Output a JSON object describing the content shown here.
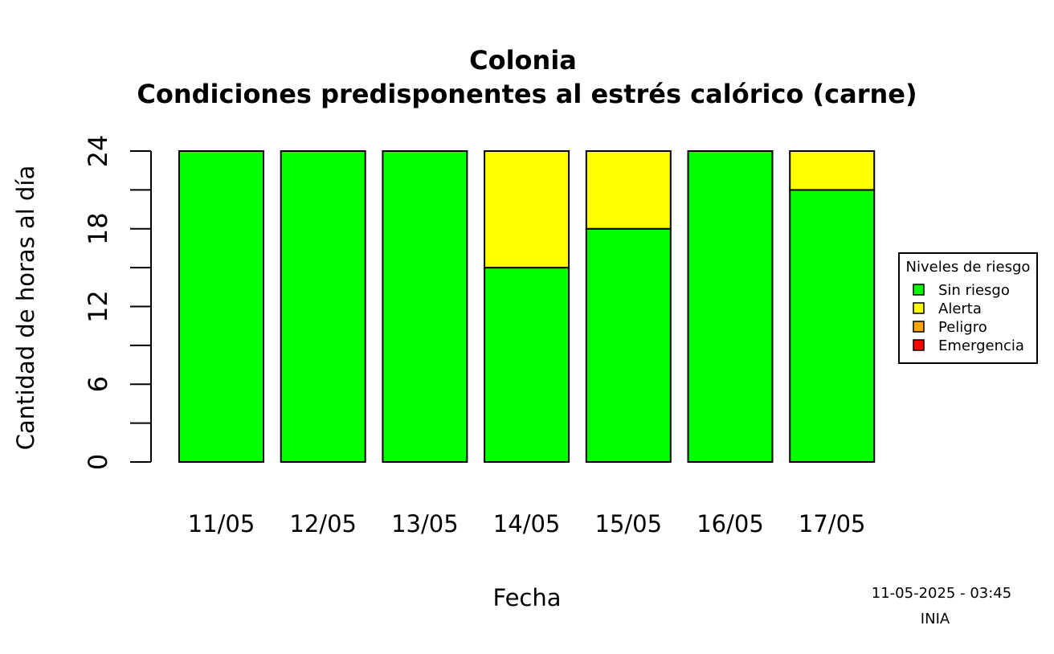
{
  "chart_data": {
    "type": "bar",
    "stacked": true,
    "title": "Colonia",
    "subtitle": "Condiciones predisponentes al estrés calórico (carne)",
    "xlabel": "Fecha",
    "ylabel": "Cantidad de horas al día",
    "ylim": [
      0,
      24
    ],
    "yticks": [
      0,
      6,
      12,
      18,
      24
    ],
    "categories": [
      "11/05",
      "12/05",
      "13/05",
      "14/05",
      "15/05",
      "16/05",
      "17/05"
    ],
    "series": [
      {
        "name": "Sin riesgo",
        "color": "#00ff00",
        "values": [
          24,
          24,
          24,
          15,
          18,
          24,
          21
        ]
      },
      {
        "name": "Alerta",
        "color": "#ffff00",
        "values": [
          0,
          0,
          0,
          9,
          6,
          0,
          3
        ]
      },
      {
        "name": "Peligro",
        "color": "#ffa500",
        "values": [
          0,
          0,
          0,
          0,
          0,
          0,
          0
        ]
      },
      {
        "name": "Emergencia",
        "color": "#ff0000",
        "values": [
          0,
          0,
          0,
          0,
          0,
          0,
          0
        ]
      }
    ],
    "legend": {
      "title": "Niveles de riesgo",
      "position": "right"
    },
    "grid": false
  },
  "footer": {
    "timestamp": "11-05-2025 - 03:45",
    "source": "INIA"
  }
}
